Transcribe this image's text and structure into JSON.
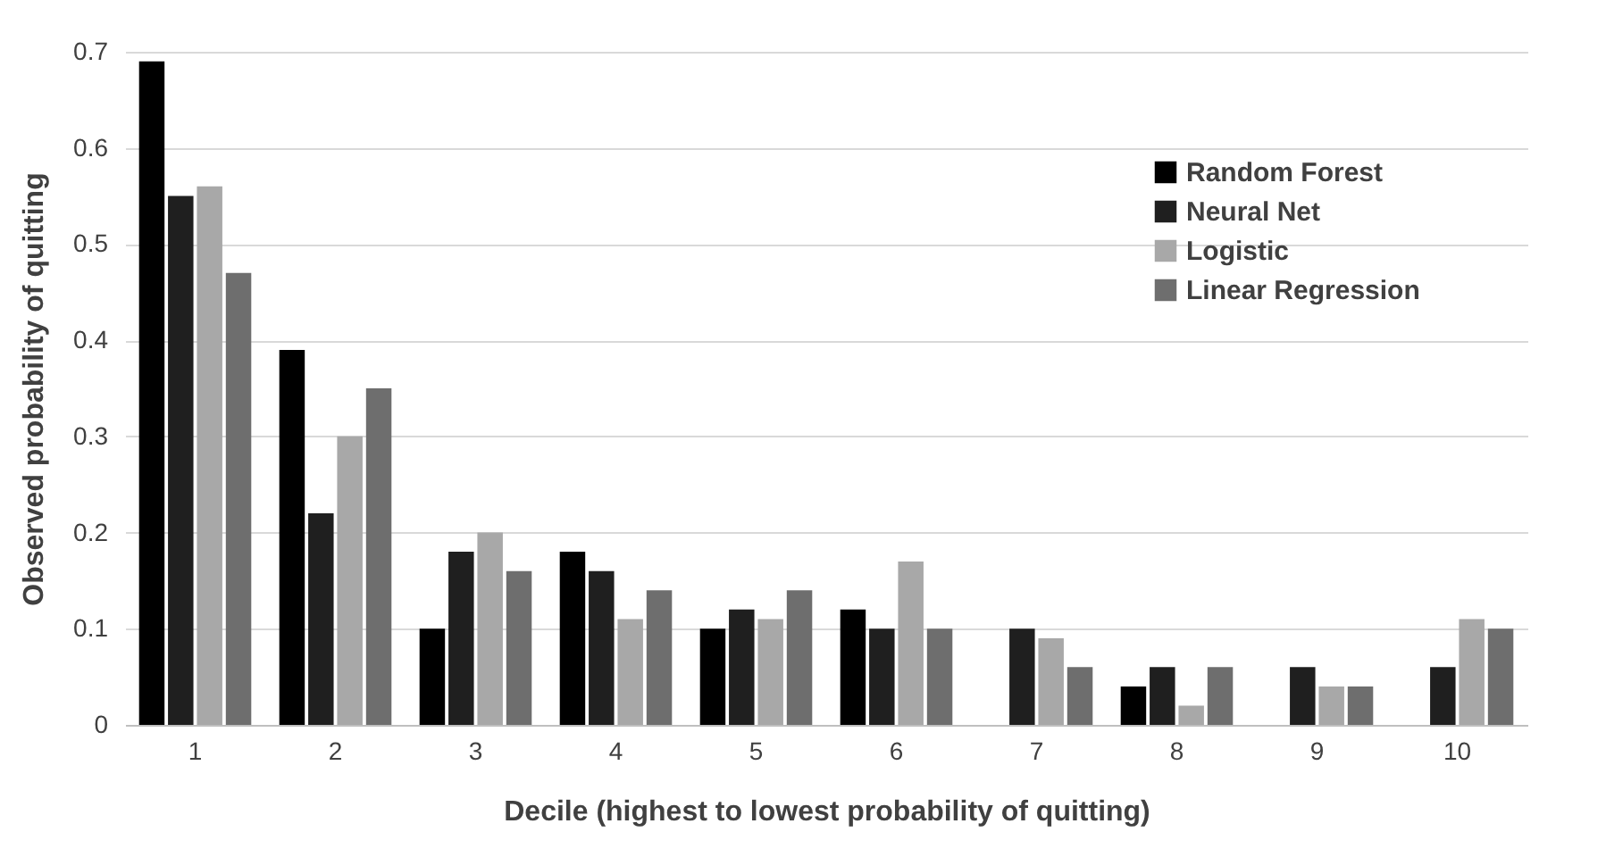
{
  "chart_data": {
    "type": "bar",
    "xlabel": "Decile (highest to lowest probability of quitting)",
    "ylabel": "Observed probability of quitting",
    "categories": [
      "1",
      "2",
      "3",
      "4",
      "5",
      "6",
      "7",
      "8",
      "9",
      "10"
    ],
    "series": [
      {
        "name": "Random Forest",
        "color": "#000000",
        "values": [
          0.69,
          0.39,
          0.1,
          0.18,
          0.1,
          0.12,
          0,
          0.04,
          0,
          0
        ]
      },
      {
        "name": "Neural Net",
        "color": "#1f1f1f",
        "values": [
          0.55,
          0.22,
          0.18,
          0.16,
          0.12,
          0.1,
          0.1,
          0.06,
          0.06,
          0.06
        ]
      },
      {
        "name": "Logistic",
        "color": "#a8a8a8",
        "values": [
          0.56,
          0.3,
          0.2,
          0.11,
          0.11,
          0.17,
          0.09,
          0.02,
          0.04,
          0.11
        ]
      },
      {
        "name": "Linear Regression",
        "color": "#6e6e6e",
        "values": [
          0.47,
          0.35,
          0.16,
          0.14,
          0.14,
          0.1,
          0.06,
          0.06,
          0.04,
          0.1
        ]
      }
    ],
    "ylim": [
      0,
      0.7
    ],
    "yticks": [
      0,
      0.1,
      0.2,
      0.3,
      0.4,
      0.5,
      0.6,
      0.7
    ],
    "grid": "y",
    "legend": "top right"
  }
}
